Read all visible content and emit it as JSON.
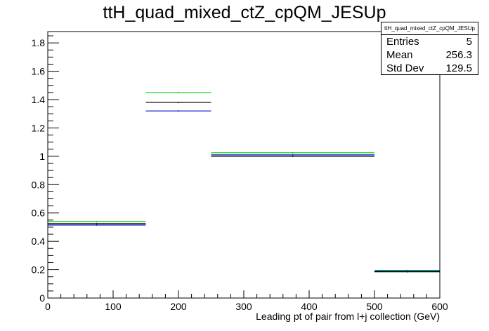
{
  "title": "ttH_quad_mixed_ctZ_cpQM_JESUp",
  "stats": {
    "name": "ttH_quad_mixed_ctZ_cpQM_JESUp",
    "rows": [
      {
        "label": "Entries",
        "value": "5"
      },
      {
        "label": "Mean",
        "value": "256.3"
      },
      {
        "label": "Std Dev",
        "value": "129.5"
      }
    ]
  },
  "chart_data": {
    "type": "line",
    "title": "ttH_quad_mixed_ctZ_cpQM_JESUp",
    "xlabel": "Leading pt of pair from l+j collection (GeV)",
    "ylabel": "",
    "xlim": [
      0,
      600
    ],
    "ylim": [
      0,
      1.88
    ],
    "x_ticks": [
      "0",
      "100",
      "200",
      "300",
      "400",
      "500",
      "600"
    ],
    "y_ticks": [
      "0",
      "0.2",
      "0.4",
      "0.6",
      "0.8",
      "1",
      "1.2",
      "1.4",
      "1.6",
      "1.8"
    ],
    "bin_edges": [
      0,
      150,
      250,
      500,
      600
    ],
    "series": [
      {
        "color": "#00cc00",
        "values": [
          0.54,
          1.45,
          1.025,
          0.195
        ]
      },
      {
        "color": "#000000",
        "values": [
          0.525,
          1.38,
          1.0,
          0.185
        ]
      },
      {
        "color": "#0000cc",
        "values": [
          0.515,
          1.32,
          1.01,
          0.19
        ]
      }
    ],
    "grid": false,
    "legend": "none"
  }
}
